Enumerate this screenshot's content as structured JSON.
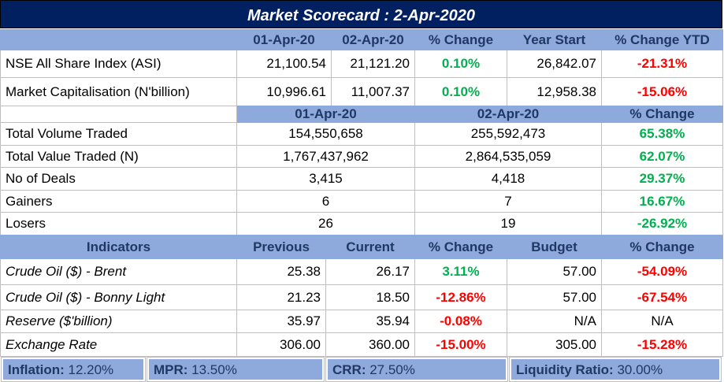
{
  "title": "Market Scorecard : 2-Apr-2020",
  "t1": {
    "headers": [
      "01-Apr-20",
      "02-Apr-20",
      "% Change",
      "Year Start",
      "% Change YTD"
    ],
    "rows": [
      {
        "label": "NSE All Share Index (ASI)",
        "v1": "21,100.54",
        "v2": "21,121.20",
        "chg": "0.10%",
        "ys": "26,842.07",
        "ytd": "-21.31%"
      },
      {
        "label": "Market Capitalisation (N'billion)",
        "v1": "10,996.61",
        "v2": "11,007.37",
        "chg": "0.10%",
        "ys": "12,958.38",
        "ytd": "-15.06%"
      }
    ]
  },
  "t2": {
    "headers": [
      "01-Apr-20",
      "02-Apr-20",
      "% Change"
    ],
    "rows": [
      {
        "label": "Total Volume Traded",
        "v1": "154,550,658",
        "v2": "255,592,473",
        "chg": "65.38%"
      },
      {
        "label": "Total Value Traded (N)",
        "v1": "1,767,437,962",
        "v2": "2,864,535,059",
        "chg": "62.07%"
      },
      {
        "label": "No of Deals",
        "v1": "3,415",
        "v2": "4,418",
        "chg": "29.37%"
      },
      {
        "label": "Gainers",
        "v1": "6",
        "v2": "7",
        "chg": "16.67%"
      },
      {
        "label": "Losers",
        "v1": "26",
        "v2": "19",
        "chg": "-26.92%"
      }
    ]
  },
  "t3": {
    "headers": [
      "Indicators",
      "Previous",
      "Current",
      "% Change",
      "Budget",
      "% Change"
    ],
    "rows": [
      {
        "label": "Crude Oil ($) - Brent",
        "prev": "25.38",
        "cur": "26.17",
        "chg": "3.11%",
        "bud": "57.00",
        "bchg": "-54.09%"
      },
      {
        "label": "Crude Oil ($) - Bonny Light",
        "prev": "21.23",
        "cur": "18.50",
        "chg": "-12.86%",
        "bud": "57.00",
        "bchg": "-67.54%"
      },
      {
        "label": "Reserve ($'billion)",
        "prev": "35.97",
        "cur": "35.94",
        "chg": "-0.08%",
        "bud": "N/A",
        "bchg": "N/A"
      },
      {
        "label": "Exchange Rate",
        "prev": "306.00",
        "cur": "360.00",
        "chg": "-15.00%",
        "bud": "305.00",
        "bchg": "-15.28%"
      }
    ]
  },
  "footer": [
    {
      "k": "Inflation:",
      "v": " 12.20%"
    },
    {
      "k": "MPR:",
      "v": " 13.50%"
    },
    {
      "k": "CRR:",
      "v": " 27.50%"
    },
    {
      "k": "Liquidity Ratio:",
      "v": " 30.00%"
    }
  ]
}
